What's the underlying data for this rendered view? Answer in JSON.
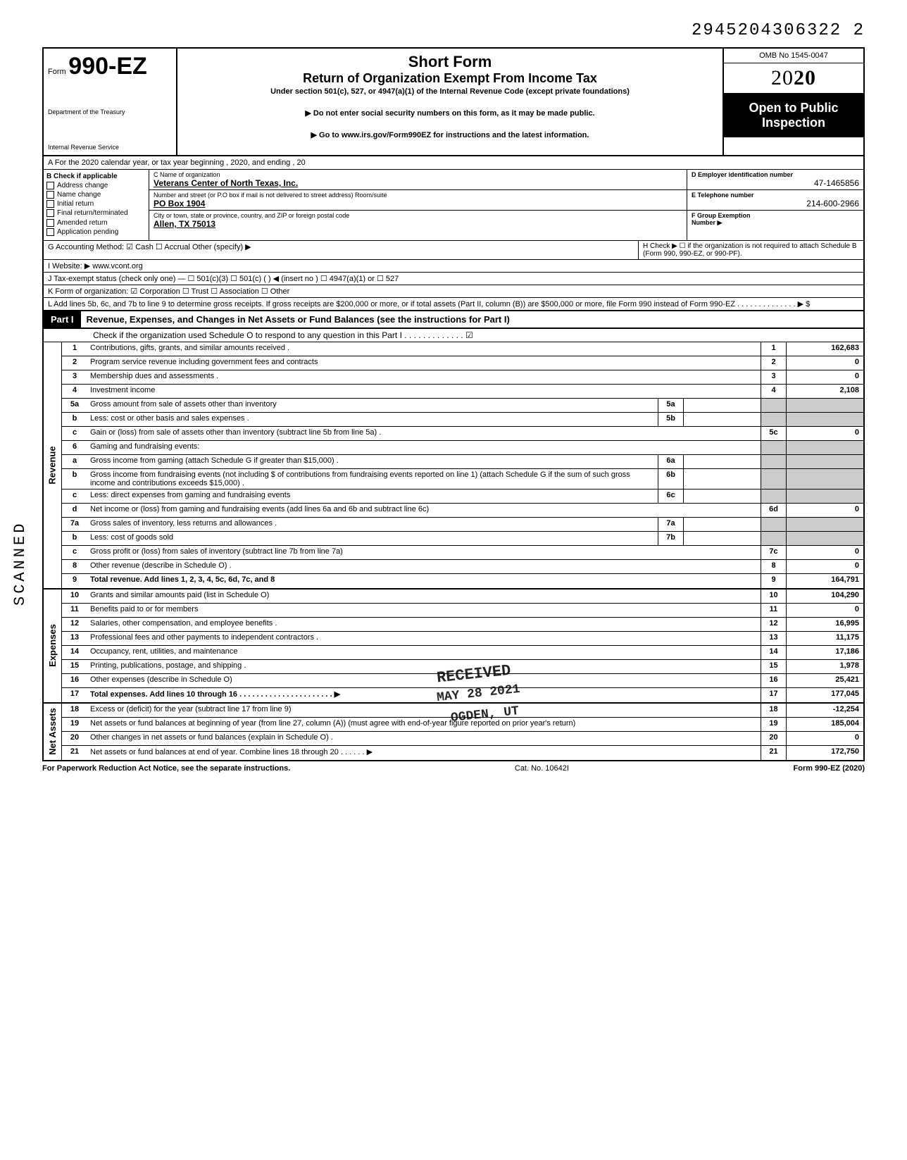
{
  "dln": "2945204306322  2",
  "header": {
    "form_small": "Form",
    "form_big": "990-EZ",
    "dept1": "Department of the Treasury",
    "dept2": "Internal Revenue Service",
    "title1": "Short Form",
    "title2": "Return of Organization Exempt From Income Tax",
    "subtitle": "Under section 501(c), 527, or 4947(a)(1) of the Internal Revenue Code (except private foundations)",
    "note1": "▶ Do not enter social security numbers on this form, as it may be made public.",
    "note2": "▶ Go to www.irs.gov/Form990EZ for instructions and the latest information.",
    "omb": "OMB No  1545-0047",
    "year_prefix": "20",
    "year_bold": "20",
    "open1": "Open to Public",
    "open2": "Inspection"
  },
  "rowA": "A  For the 2020 calendar year, or tax year beginning                                              , 2020, and ending                                          , 20",
  "colB": {
    "hdr": "B  Check if applicable",
    "items": [
      "Address change",
      "Name change",
      "Initial return",
      "Final return/terminated",
      "Amended return",
      "Application pending"
    ]
  },
  "colC": {
    "name_lbl": "C  Name of organization",
    "name_val": "Veterans Center of North Texas, Inc.",
    "addr_lbl": "Number and street (or P.O  box if mail is not delivered to street address)                         Room/suite",
    "addr_val": "PO Box 1904",
    "city_lbl": "City or town, state or province, country, and ZIP or foreign postal code",
    "city_val": "Allen, TX 75013"
  },
  "colDE": {
    "d_lbl": "D Employer identification number",
    "d_val": "47-1465856",
    "e_lbl": "E  Telephone number",
    "e_val": "214-600-2966",
    "f_lbl": "F  Group Exemption",
    "f_lbl2": "Number ▶"
  },
  "lineG": "G  Accounting Method:    ☑ Cash    ☐ Accrual    Other (specify) ▶",
  "lineH": "H  Check ▶ ☐ if the organization is not required to attach Schedule B (Form 990, 990-EZ, or 990-PF).",
  "lineI": "I   Website: ▶     www.vcont.org",
  "lineJ": "J  Tax-exempt status (check only one) — ☐ 501(c)(3)   ☐ 501(c) (        ) ◀ (insert no ) ☐ 4947(a)(1) or   ☐ 527",
  "lineK": "K  Form of organization:   ☑ Corporation      ☐ Trust             ☐ Association        ☐ Other",
  "lineL": "L  Add lines 5b, 6c, and 7b to line 9 to determine gross receipts. If gross receipts are $200,000 or more, or if total assets (Part II, column (B)) are $500,000 or more, file Form 990 instead of Form 990-EZ .  .  .  .  .  .  .  .  .  .  .  .  .  .  ▶   $",
  "part1": {
    "tag": "Part I",
    "title": "Revenue, Expenses, and Changes in Net Assets or Fund Balances (see the instructions for Part I)",
    "sub": "Check if the organization used Schedule O to respond to any question in this Part I  .  .  .  .  .  .  .  .  .  .  .  .  .  ☑"
  },
  "sections": [
    {
      "label": "Revenue",
      "rows": [
        {
          "n": "1",
          "d": "Contributions, gifts, grants, and similar amounts received .",
          "rn": "1",
          "rv": "162,683"
        },
        {
          "n": "2",
          "d": "Program service revenue including government fees and contracts",
          "rn": "2",
          "rv": "0"
        },
        {
          "n": "3",
          "d": "Membership dues and assessments .",
          "rn": "3",
          "rv": "0"
        },
        {
          "n": "4",
          "d": "Investment income",
          "rn": "4",
          "rv": "2,108"
        },
        {
          "n": "5a",
          "d": "Gross amount from sale of assets other than inventory",
          "mn": "5a",
          "mv": "",
          "shade": true
        },
        {
          "n": "b",
          "d": "Less: cost or other basis and sales expenses .",
          "mn": "5b",
          "mv": "",
          "shade": true
        },
        {
          "n": "c",
          "d": "Gain or (loss) from sale of assets other than inventory (subtract line 5b from line 5a) .",
          "rn": "5c",
          "rv": "0"
        },
        {
          "n": "6",
          "d": "Gaming and fundraising events:",
          "shade": true
        },
        {
          "n": "a",
          "d": "Gross income from gaming (attach Schedule G if greater than $15,000) .",
          "mn": "6a",
          "mv": "",
          "shade": true
        },
        {
          "n": "b",
          "d": "Gross income from fundraising events (not including  $                       of contributions from fundraising events reported on line 1) (attach Schedule G if the sum of such gross income and contributions exceeds $15,000) .",
          "mn": "6b",
          "mv": "",
          "shade": true
        },
        {
          "n": "c",
          "d": "Less: direct expenses from gaming and fundraising events",
          "mn": "6c",
          "mv": "",
          "shade": true
        },
        {
          "n": "d",
          "d": "Net income or (loss) from gaming and fundraising events (add lines 6a and 6b and subtract line 6c)",
          "rn": "6d",
          "rv": "0"
        },
        {
          "n": "7a",
          "d": "Gross sales of inventory, less returns and allowances .",
          "mn": "7a",
          "mv": "",
          "shade": true
        },
        {
          "n": "b",
          "d": "Less: cost of goods sold",
          "mn": "7b",
          "mv": "",
          "shade": true
        },
        {
          "n": "c",
          "d": "Gross profit or (loss) from sales of inventory (subtract line 7b from line 7a)",
          "rn": "7c",
          "rv": "0"
        },
        {
          "n": "8",
          "d": "Other revenue (describe in Schedule O) .",
          "rn": "8",
          "rv": "0"
        },
        {
          "n": "9",
          "d": "Total revenue. Add lines 1, 2, 3, 4, 5c, 6d, 7c, and 8",
          "rn": "9",
          "rv": "164,791",
          "bold": true
        }
      ]
    },
    {
      "label": "Expenses",
      "rows": [
        {
          "n": "10",
          "d": "Grants and similar amounts paid (list in Schedule O)",
          "rn": "10",
          "rv": "104,290"
        },
        {
          "n": "11",
          "d": "Benefits paid to or for members",
          "rn": "11",
          "rv": "0"
        },
        {
          "n": "12",
          "d": "Salaries, other compensation, and employee benefits .",
          "rn": "12",
          "rv": "16,995"
        },
        {
          "n": "13",
          "d": "Professional fees and other payments to independent contractors .",
          "rn": "13",
          "rv": "11,175"
        },
        {
          "n": "14",
          "d": "Occupancy, rent, utilities, and maintenance",
          "rn": "14",
          "rv": "17,186"
        },
        {
          "n": "15",
          "d": "Printing, publications, postage, and shipping .",
          "rn": "15",
          "rv": "1,978"
        },
        {
          "n": "16",
          "d": "Other expenses (describe in Schedule O)",
          "rn": "16",
          "rv": "25,421"
        },
        {
          "n": "17",
          "d": "Total expenses. Add lines 10 through 16 .  .  .  .  .  .  .  .  .  .  .  .  .  .  .  .  .  .  .  .  .  . ▶",
          "rn": "17",
          "rv": "177,045",
          "bold": true
        }
      ]
    },
    {
      "label": "Net Assets",
      "rows": [
        {
          "n": "18",
          "d": "Excess or (deficit) for the year (subtract line 17 from line 9)",
          "rn": "18",
          "rv": "-12,254"
        },
        {
          "n": "19",
          "d": "Net assets or fund balances at beginning of year (from line 27, column (A)) (must agree with end-of-year figure reported on prior year's return)",
          "rn": "19",
          "rv": "185,004"
        },
        {
          "n": "20",
          "d": "Other changes in net assets or fund balances (explain in Schedule O) .",
          "rn": "20",
          "rv": "0"
        },
        {
          "n": "21",
          "d": "Net assets or fund balances at end of year. Combine lines 18 through 20    .  .  .  .  .  . ▶",
          "rn": "21",
          "rv": "172,750"
        }
      ]
    }
  ],
  "footer": {
    "left": "For Paperwork Reduction Act Notice, see the separate instructions.",
    "mid": "Cat. No. 10642I",
    "right": "Form 990-EZ (2020)"
  },
  "stamps": {
    "scanned": "SCANNED",
    "received": "RECEIVED",
    "date": "MAY 28 2021",
    "ogden": "OGDEN, UT"
  }
}
